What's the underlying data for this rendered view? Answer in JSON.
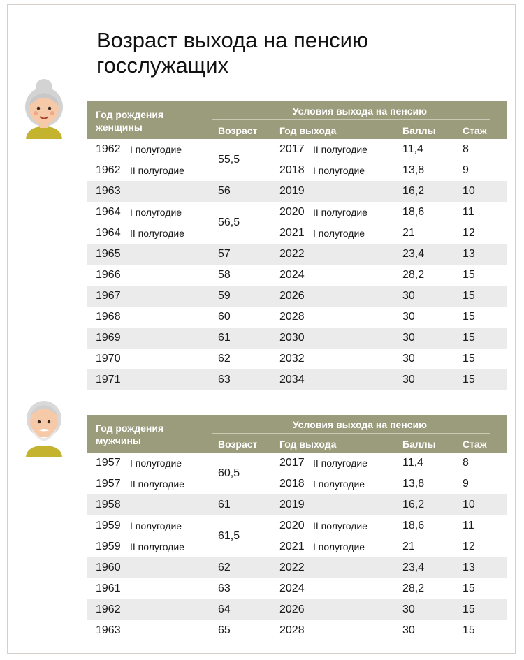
{
  "title": "Возраст выхода на пенсию госслужащих",
  "women": {
    "header": {
      "birth": "Год рождения",
      "gender": "женщины",
      "conditions": "Условия выхода на пенсию",
      "age": "Возраст",
      "year": "Год выхода",
      "points": "Баллы",
      "experience": "Стаж"
    },
    "rows": [
      {
        "birth": "1962",
        "half": "I полугодие",
        "year": "2017",
        "year_half": "II полугодие",
        "points": "11,4",
        "exp": "8"
      },
      {
        "birth": "1962",
        "half": "II полугодие",
        "year": "2018",
        "year_half": "I полугодие",
        "points": "13,8",
        "exp": "9"
      },
      {
        "birth": "1963",
        "half": "",
        "age": "56",
        "year": "2019",
        "year_half": "",
        "points": "16,2",
        "exp": "10"
      },
      {
        "birth": "1964",
        "half": "I полугодие",
        "year": "2020",
        "year_half": "II полугодие",
        "points": "18,6",
        "exp": "11"
      },
      {
        "birth": "1964",
        "half": "II полугодие",
        "year": "2021",
        "year_half": "I полугодие",
        "points": "21",
        "exp": "12"
      },
      {
        "birth": "1965",
        "half": "",
        "age": "57",
        "year": "2022",
        "year_half": "",
        "points": "23,4",
        "exp": "13"
      },
      {
        "birth": "1966",
        "half": "",
        "age": "58",
        "year": "2024",
        "year_half": "",
        "points": "28,2",
        "exp": "15"
      },
      {
        "birth": "1967",
        "half": "",
        "age": "59",
        "year": "2026",
        "year_half": "",
        "points": "30",
        "exp": "15"
      },
      {
        "birth": "1968",
        "half": "",
        "age": "60",
        "year": "2028",
        "year_half": "",
        "points": "30",
        "exp": "15"
      },
      {
        "birth": "1969",
        "half": "",
        "age": "61",
        "year": "2030",
        "year_half": "",
        "points": "30",
        "exp": "15"
      },
      {
        "birth": "1970",
        "half": "",
        "age": "62",
        "year": "2032",
        "year_half": "",
        "points": "30",
        "exp": "15"
      },
      {
        "birth": "1971",
        "half": "",
        "age": "63",
        "year": "2034",
        "year_half": "",
        "points": "30",
        "exp": "15"
      }
    ],
    "merged_ages": [
      "55,5",
      "56,5"
    ]
  },
  "men": {
    "header": {
      "birth": "Год рождения",
      "gender": "мужчины",
      "conditions": "Условия выхода на пенсию",
      "age": "Возраст",
      "year": "Год выхода",
      "points": "Баллы",
      "experience": "Стаж"
    },
    "rows": [
      {
        "birth": "1957",
        "half": "I полугодие",
        "year": "2017",
        "year_half": "II полугодие",
        "points": "11,4",
        "exp": "8"
      },
      {
        "birth": "1957",
        "half": "II полугодие",
        "year": "2018",
        "year_half": "I полугодие",
        "points": "13,8",
        "exp": "9"
      },
      {
        "birth": "1958",
        "half": "",
        "age": "61",
        "year": "2019",
        "year_half": "",
        "points": "16,2",
        "exp": "10"
      },
      {
        "birth": "1959",
        "half": "I полугодие",
        "year": "2020",
        "year_half": "II полугодие",
        "points": "18,6",
        "exp": "11"
      },
      {
        "birth": "1959",
        "half": "II полугодие",
        "year": "2021",
        "year_half": "I полугодие",
        "points": "21",
        "exp": "12"
      },
      {
        "birth": "1960",
        "half": "",
        "age": "62",
        "year": "2022",
        "year_half": "",
        "points": "23,4",
        "exp": "13"
      },
      {
        "birth": "1961",
        "half": "",
        "age": "63",
        "year": "2024",
        "year_half": "",
        "points": "28,2",
        "exp": "15"
      },
      {
        "birth": "1962",
        "half": "",
        "age": "64",
        "year": "2026",
        "year_half": "",
        "points": "30",
        "exp": "15"
      },
      {
        "birth": "1963",
        "half": "",
        "age": "65",
        "year": "2028",
        "year_half": "",
        "points": "30",
        "exp": "15"
      }
    ],
    "merged_ages": [
      "60,5",
      "61,5"
    ]
  },
  "icons": {
    "women_avatar": "grandmother-icon",
    "men_avatar": "grandfather-icon"
  },
  "colors": {
    "header_bg": "#9a9c7b",
    "row_shade": "#ebebeb"
  }
}
